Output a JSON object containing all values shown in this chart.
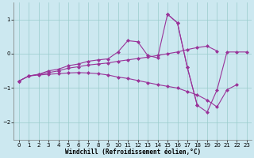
{
  "xlabel": "Windchill (Refroidissement éolien,°C)",
  "background_color": "#cce8f0",
  "grid_color": "#99cccc",
  "line_color": "#993399",
  "x": [
    0,
    1,
    2,
    3,
    4,
    5,
    6,
    7,
    8,
    9,
    10,
    11,
    12,
    13,
    14,
    15,
    16,
    17,
    18,
    19,
    20,
    21,
    22,
    23
  ],
  "line1": [
    -0.8,
    -0.65,
    -0.6,
    -0.5,
    -0.45,
    -0.35,
    -0.3,
    -0.22,
    -0.18,
    -0.15,
    0.05,
    0.38,
    0.35,
    -0.05,
    -0.12,
    1.15,
    0.9,
    -0.4,
    -1.5,
    null,
    null,
    null,
    null,
    null
  ],
  "line2": [
    -0.8,
    -0.65,
    -0.6,
    -0.55,
    -0.5,
    -0.42,
    -0.38,
    -0.33,
    -0.3,
    -0.27,
    -0.22,
    -0.18,
    -0.14,
    -0.1,
    -0.05,
    0.0,
    0.05,
    0.12,
    0.18,
    0.22,
    0.08,
    null,
    null,
    null
  ],
  "line3": [
    -0.8,
    -0.65,
    -0.62,
    -0.6,
    -0.58,
    -0.56,
    -0.55,
    -0.56,
    -0.58,
    -0.62,
    -0.68,
    -0.72,
    -0.78,
    -0.84,
    -0.9,
    -0.95,
    -1.0,
    -1.1,
    -1.2,
    -1.35,
    -1.55,
    -1.05,
    -0.9,
    null
  ],
  "line1_x": [
    0,
    1,
    2,
    3,
    4,
    5,
    6,
    7,
    8,
    9,
    10,
    11,
    12,
    13,
    14,
    15,
    16,
    17,
    18
  ],
  "line1_y": [
    -0.8,
    -0.65,
    -0.6,
    -0.5,
    -0.45,
    -0.35,
    -0.3,
    -0.22,
    -0.18,
    -0.15,
    0.05,
    0.38,
    0.35,
    -0.05,
    -0.12,
    1.15,
    0.9,
    -0.4,
    -1.5
  ],
  "line2_x": [
    0,
    1,
    2,
    3,
    4,
    5,
    6,
    7,
    8,
    9,
    10,
    11,
    12,
    13,
    14,
    15,
    16,
    17,
    18,
    19,
    20
  ],
  "line2_y": [
    -0.8,
    -0.65,
    -0.6,
    -0.55,
    -0.5,
    -0.42,
    -0.38,
    -0.33,
    -0.3,
    -0.27,
    -0.22,
    -0.18,
    -0.14,
    -0.1,
    -0.05,
    0.0,
    0.05,
    0.12,
    0.18,
    0.22,
    0.08
  ],
  "line3_x": [
    0,
    1,
    2,
    3,
    4,
    5,
    6,
    7,
    8,
    9,
    10,
    11,
    12,
    13,
    14,
    15,
    16,
    17,
    18,
    19,
    20,
    21,
    22
  ],
  "line3_y": [
    -0.8,
    -0.65,
    -0.62,
    -0.6,
    -0.58,
    -0.56,
    -0.55,
    -0.56,
    -0.58,
    -0.62,
    -0.68,
    -0.72,
    -0.78,
    -0.84,
    -0.9,
    -0.95,
    -1.0,
    -1.1,
    -1.2,
    -1.35,
    -1.55,
    -1.05,
    -0.9
  ],
  "line4_x": [
    15,
    16,
    17,
    18,
    19,
    20,
    21,
    22,
    23
  ],
  "line4_y": [
    1.15,
    0.9,
    -0.4,
    -1.5,
    -1.7,
    -1.05,
    0.05,
    0.05,
    0.05
  ],
  "ylim": [
    -2.5,
    1.5
  ],
  "xlim": [
    -0.5,
    23.5
  ],
  "yticks": [
    -2,
    -1,
    0,
    1
  ],
  "xticks": [
    0,
    1,
    2,
    3,
    4,
    5,
    6,
    7,
    8,
    9,
    10,
    11,
    12,
    13,
    14,
    15,
    16,
    17,
    18,
    19,
    20,
    21,
    22,
    23
  ],
  "marker": "D",
  "markersize": 2.5,
  "linewidth": 0.8,
  "xlabel_fontsize": 5.5,
  "tick_fontsize": 5.0
}
